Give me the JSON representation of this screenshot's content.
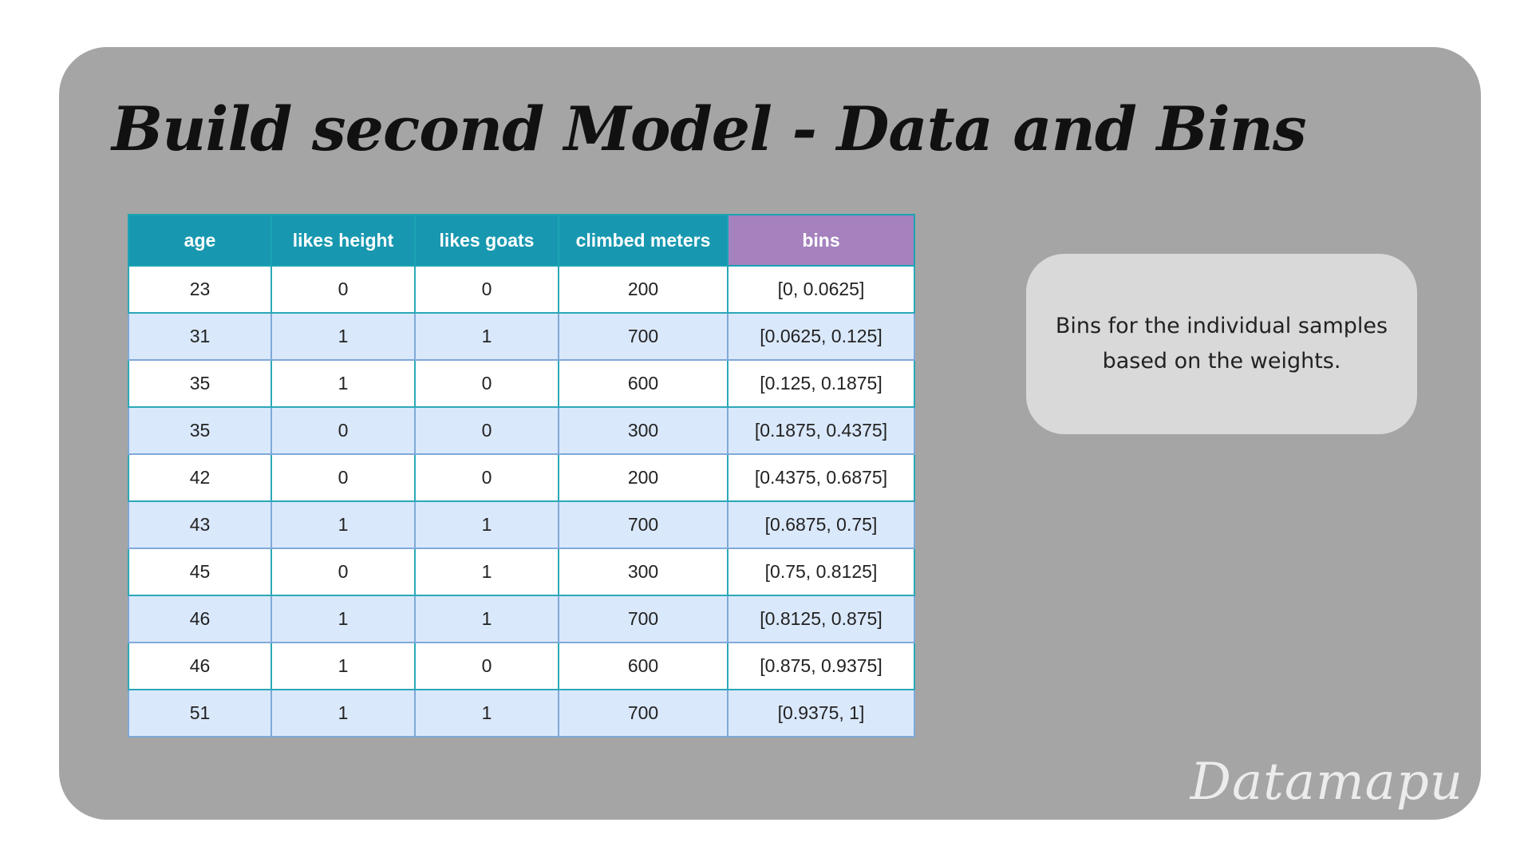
{
  "title": "Build second Model - Data and Bins",
  "table": {
    "headers": [
      "age",
      "likes height",
      "likes goats",
      "climbed meters",
      "bins"
    ],
    "rows": [
      [
        "23",
        "0",
        "0",
        "200",
        "[0, 0.0625]"
      ],
      [
        "31",
        "1",
        "1",
        "700",
        "[0.0625, 0.125]"
      ],
      [
        "35",
        "1",
        "0",
        "600",
        "[0.125, 0.1875]"
      ],
      [
        "35",
        "0",
        "0",
        "300",
        "[0.1875, 0.4375]"
      ],
      [
        "42",
        "0",
        "0",
        "200",
        "[0.4375, 0.6875]"
      ],
      [
        "43",
        "1",
        "1",
        "700",
        "[0.6875, 0.75]"
      ],
      [
        "45",
        "0",
        "1",
        "300",
        "[0.75, 0.8125]"
      ],
      [
        "46",
        "1",
        "1",
        "700",
        "[0.8125, 0.875]"
      ],
      [
        "46",
        "1",
        "0",
        "600",
        "[0.875, 0.9375]"
      ],
      [
        "51",
        "1",
        "1",
        "700",
        "[0.9375, 1]"
      ]
    ]
  },
  "note": "Bins for the individual samples based on the weights.",
  "watermark": "Datamapu",
  "colors": {
    "background_panel": "#a5a5a5",
    "header_feature": "#1898b0",
    "header_bins": "#a582be",
    "row_alt": "#dae8fb",
    "note_box": "#d9d9d9"
  }
}
